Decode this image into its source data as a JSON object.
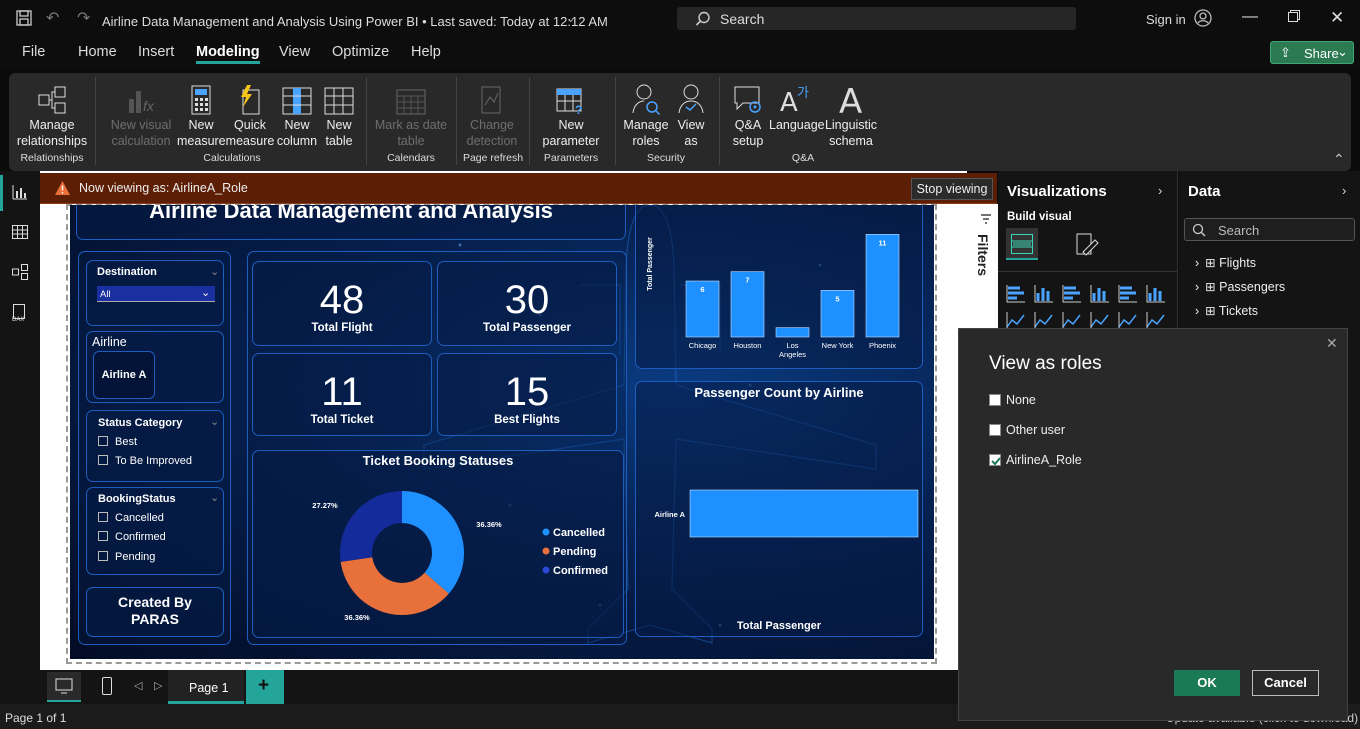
{
  "titlebar": {
    "doc_title": "Airline Data Management and Analysis Using Power BI • Last saved: Today at 12:12 AM",
    "search_placeholder": "Search",
    "sign_in": "Sign in"
  },
  "menu": {
    "items": [
      "File",
      "Home",
      "Insert",
      "Modeling",
      "View",
      "Optimize",
      "Help"
    ],
    "active": "Modeling",
    "share": "Share"
  },
  "ribbon": {
    "manage_relationships": "Manage relationships",
    "new_visual_calc": "New visual calculation",
    "new_measure": "New measure",
    "quick_measure": "Quick measure",
    "new_column": "New column",
    "new_table": "New table",
    "mark_date_table": "Mark as date table",
    "change_detection": "Change detection",
    "new_parameter": "New parameter",
    "manage_roles": "Manage roles",
    "view_as": "View as",
    "qa_setup": "Q&A setup",
    "language": "Language",
    "linguistic_schema": "Linguistic schema",
    "groups": {
      "relationships": "Relationships",
      "calculations": "Calculations",
      "calendars": "Calendars",
      "page_refresh": "Page refresh",
      "parameters": "Parameters",
      "security": "Security",
      "qa": "Q&A"
    }
  },
  "notification": {
    "text": "Now viewing as: AirlineA_Role",
    "stop": "Stop viewing"
  },
  "report": {
    "title": "Airline Data Management and Analysis",
    "destination": {
      "label": "Destination",
      "value": "All"
    },
    "airline": {
      "label": "Airline",
      "value": "Airline A"
    },
    "status_category": {
      "label": "Status Category",
      "options": [
        "Best",
        "To Be Improved"
      ]
    },
    "booking_status": {
      "label": "BookingStatus",
      "options": [
        "Cancelled",
        "Confirmed",
        "Pending"
      ]
    },
    "created_by": "Created By PARAS",
    "kpis": [
      {
        "value": "48",
        "label": "Total Flight"
      },
      {
        "value": "30",
        "label": "Total Passenger"
      },
      {
        "value": "11",
        "label": "Total Ticket"
      },
      {
        "value": "15",
        "label": "Best Flights"
      }
    ]
  },
  "chart_data": [
    {
      "type": "bar",
      "title": "",
      "ylabel": "Total Passenger",
      "categories": [
        "Chicago",
        "Houston",
        "Los Angeles",
        "New York",
        "Phoenix"
      ],
      "values": [
        6,
        7,
        1,
        5,
        11
      ],
      "data_labels": [
        "6",
        "7",
        "",
        "5",
        "11"
      ],
      "ylim": [
        0,
        12
      ]
    },
    {
      "type": "pie",
      "title": "Ticket Booking Statuses",
      "donut": true,
      "categories": [
        "Cancelled",
        "Pending",
        "Confirmed"
      ],
      "values": [
        36.36,
        36.36,
        27.27
      ],
      "labels": [
        "36.36%",
        "36.36%",
        "27.27%"
      ],
      "colors": [
        "#1e90ff",
        "#e8703a",
        "#142b9c"
      ]
    },
    {
      "type": "bar",
      "orientation": "horizontal",
      "title": "Passenger Count by Airline",
      "categories": [
        "Airline A"
      ],
      "values": [
        30
      ],
      "xlabel": "Total Passenger",
      "xlim": [
        0,
        30
      ]
    }
  ],
  "filters": {
    "label": "Filters"
  },
  "visualizations": {
    "title": "Visualizations",
    "build": "Build visual"
  },
  "data_pane": {
    "title": "Data",
    "search_placeholder": "Search",
    "tables": [
      "Flights",
      "Passengers",
      "Tickets"
    ]
  },
  "dialog": {
    "title": "View as roles",
    "roles": [
      {
        "name": "None",
        "checked": false
      },
      {
        "name": "Other user",
        "checked": false
      },
      {
        "name": "AirlineA_Role",
        "checked": true
      }
    ],
    "ok": "OK",
    "cancel": "Cancel"
  },
  "pages": {
    "current": "Page 1"
  },
  "status": {
    "page": "Page 1 of 1",
    "update": "Update available (click to download)"
  },
  "colors": {
    "accent": "#23a59b",
    "bar": "#1e90ff",
    "notify": "#5c1f06"
  }
}
